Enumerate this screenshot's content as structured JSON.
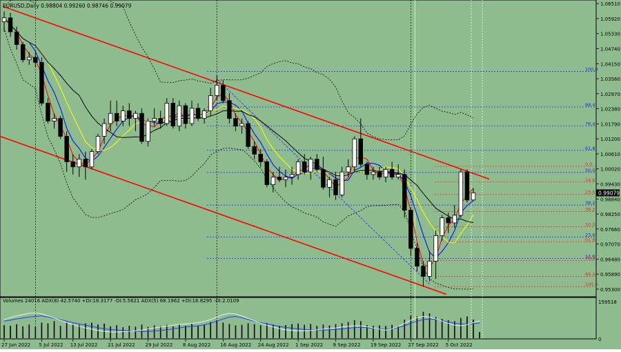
{
  "window": {
    "symbol_info": "EURUSD,Daily  0.98804 0.99260 0.98746 0.99079",
    "indicator_info": "Volumes 24016  ADX(8) 42.5740 +DI:18.3177 -DI:5.5621  ADX(5) 68.1962 +DI:16.8295 -DI:2.0109"
  },
  "colors": {
    "background": "#8fbc8f",
    "bull_candle": "#ffffff",
    "bear_candle": "#000000",
    "channel": "#ff0000",
    "fib_blue": "#2020ff",
    "fib_red": "#ff2020",
    "ma_red": "#ff0000",
    "ma_blue": "#0000ff",
    "ma_yellow": "#ffff00",
    "ma_black": "#000000",
    "bollinger": "#000000",
    "current_price_box": "#000000"
  },
  "chart_data": [
    {
      "type": "candlestick",
      "title": "EURUSD,Daily",
      "ylim": [
        0.95,
        1.0665
      ],
      "price_scale": [
        "1.06510",
        "1.05920",
        "1.05330",
        "1.04740",
        "1.04150",
        "1.03560",
        "1.02970",
        "1.02380",
        "1.01790",
        "1.01200",
        "1.00610",
        "1.00020",
        "0.99430",
        "0.98840",
        "0.98250",
        "0.97660",
        "0.97070",
        "0.96480",
        "0.95890",
        "0.95300"
      ],
      "current_price": "0.99079",
      "x_labels": [
        "27 Jun 2022",
        "5 Jul 2022",
        "13 Jul 2022",
        "21 Jul 2022",
        "29 Jul 2022",
        "8 Aug 2022",
        "16 Aug 2022",
        "24 Aug 2022",
        "1 Sep 2022",
        "9 Sep 2022",
        "19 Sep 2022",
        "27 Sep 2022",
        "5 Oct 2022"
      ],
      "candles": [
        {
          "o": 1.058,
          "h": 1.062,
          "l": 1.054,
          "c": 1.0595
        },
        {
          "o": 1.0595,
          "h": 1.0615,
          "l": 1.052,
          "c": 1.054
        },
        {
          "o": 1.054,
          "h": 1.056,
          "l": 1.047,
          "c": 1.049
        },
        {
          "o": 1.049,
          "h": 1.05,
          "l": 1.042,
          "c": 1.043
        },
        {
          "o": 1.043,
          "h": 1.046,
          "l": 1.041,
          "c": 1.044
        },
        {
          "o": 1.044,
          "h": 1.046,
          "l": 1.04,
          "c": 1.042
        },
        {
          "o": 1.042,
          "h": 1.044,
          "l": 1.025,
          "c": 1.026
        },
        {
          "o": 1.026,
          "h": 1.028,
          "l": 1.018,
          "c": 1.019
        },
        {
          "o": 1.019,
          "h": 1.022,
          "l": 1.016,
          "c": 1.02
        },
        {
          "o": 1.02,
          "h": 1.021,
          "l": 1.012,
          "c": 1.013
        },
        {
          "o": 1.013,
          "h": 1.015,
          "l": 0.999,
          "c": 1.003
        },
        {
          "o": 1.003,
          "h": 1.006,
          "l": 0.998,
          "c": 1.001
        },
        {
          "o": 1.001,
          "h": 1.006,
          "l": 0.997,
          "c": 1.004
        },
        {
          "o": 1.004,
          "h": 1.007,
          "l": 0.996,
          "c": 1.001
        },
        {
          "o": 1.001,
          "h": 1.008,
          "l": 1.0,
          "c": 1.007
        },
        {
          "o": 1.007,
          "h": 1.014,
          "l": 1.006,
          "c": 1.013
        },
        {
          "o": 1.013,
          "h": 1.02,
          "l": 1.01,
          "c": 1.018
        },
        {
          "o": 1.018,
          "h": 1.027,
          "l": 1.015,
          "c": 1.022
        },
        {
          "o": 1.022,
          "h": 1.027,
          "l": 1.017,
          "c": 1.019
        },
        {
          "o": 1.019,
          "h": 1.025,
          "l": 1.017,
          "c": 1.023
        },
        {
          "o": 1.023,
          "h": 1.026,
          "l": 1.017,
          "c": 1.02
        },
        {
          "o": 1.02,
          "h": 1.023,
          "l": 1.015,
          "c": 1.022
        },
        {
          "o": 1.022,
          "h": 1.024,
          "l": 1.01,
          "c": 1.011
        },
        {
          "o": 1.011,
          "h": 1.02,
          "l": 1.009,
          "c": 1.019
        },
        {
          "o": 1.019,
          "h": 1.024,
          "l": 1.017,
          "c": 1.02
        },
        {
          "o": 1.02,
          "h": 1.023,
          "l": 1.016,
          "c": 1.018
        },
        {
          "o": 1.018,
          "h": 1.028,
          "l": 1.017,
          "c": 1.026
        },
        {
          "o": 1.026,
          "h": 1.028,
          "l": 1.016,
          "c": 1.017
        },
        {
          "o": 1.017,
          "h": 1.027,
          "l": 1.015,
          "c": 1.025
        },
        {
          "o": 1.025,
          "h": 1.026,
          "l": 1.016,
          "c": 1.018
        },
        {
          "o": 1.018,
          "h": 1.027,
          "l": 1.017,
          "c": 1.024
        },
        {
          "o": 1.024,
          "h": 1.026,
          "l": 1.019,
          "c": 1.02
        },
        {
          "o": 1.02,
          "h": 1.024,
          "l": 1.018,
          "c": 1.023
        },
        {
          "o": 1.023,
          "h": 1.032,
          "l": 1.021,
          "c": 1.029
        },
        {
          "o": 1.029,
          "h": 1.037,
          "l": 1.027,
          "c": 1.033
        },
        {
          "o": 1.033,
          "h": 1.035,
          "l": 1.026,
          "c": 1.027
        },
        {
          "o": 1.027,
          "h": 1.03,
          "l": 1.018,
          "c": 1.02
        },
        {
          "o": 1.02,
          "h": 1.022,
          "l": 1.015,
          "c": 1.017
        },
        {
          "o": 1.017,
          "h": 1.02,
          "l": 1.014,
          "c": 1.018
        },
        {
          "o": 1.018,
          "h": 1.019,
          "l": 1.008,
          "c": 1.009
        },
        {
          "o": 1.009,
          "h": 1.011,
          "l": 1.004,
          "c": 1.006
        },
        {
          "o": 1.006,
          "h": 1.008,
          "l": 1.001,
          "c": 1.003
        },
        {
          "o": 1.003,
          "h": 1.004,
          "l": 0.993,
          "c": 0.994
        },
        {
          "o": 0.994,
          "h": 0.999,
          "l": 0.991,
          "c": 0.997
        },
        {
          "o": 0.997,
          "h": 1.001,
          "l": 0.995,
          "c": 0.996
        },
        {
          "o": 0.996,
          "h": 1.0,
          "l": 0.993,
          "c": 0.997
        },
        {
          "o": 0.997,
          "h": 1.001,
          "l": 0.994,
          "c": 0.998
        },
        {
          "o": 0.998,
          "h": 1.004,
          "l": 0.996,
          "c": 1.003
        },
        {
          "o": 1.003,
          "h": 1.006,
          "l": 0.998,
          "c": 0.999
        },
        {
          "o": 0.999,
          "h": 1.005,
          "l": 0.996,
          "c": 1.004
        },
        {
          "o": 1.004,
          "h": 1.006,
          "l": 0.999,
          "c": 1.0
        },
        {
          "o": 1.0,
          "h": 1.005,
          "l": 0.992,
          "c": 0.993
        },
        {
          "o": 0.993,
          "h": 0.997,
          "l": 0.989,
          "c": 0.996
        },
        {
          "o": 0.996,
          "h": 0.999,
          "l": 0.988,
          "c": 0.99
        },
        {
          "o": 0.99,
          "h": 1.001,
          "l": 0.989,
          "c": 0.999
        },
        {
          "o": 0.999,
          "h": 1.004,
          "l": 0.997,
          "c": 1.001
        },
        {
          "o": 1.001,
          "h": 1.013,
          "l": 0.999,
          "c": 1.012
        },
        {
          "o": 1.012,
          "h": 1.02,
          "l": 1.001,
          "c": 1.002
        },
        {
          "o": 1.002,
          "h": 1.003,
          "l": 0.996,
          "c": 0.998
        },
        {
          "o": 0.998,
          "h": 1.001,
          "l": 0.996,
          "c": 0.999
        },
        {
          "o": 0.999,
          "h": 1.001,
          "l": 0.996,
          "c": 0.997
        },
        {
          "o": 0.997,
          "h": 1.001,
          "l": 0.995,
          "c": 1.0
        },
        {
          "o": 1.0,
          "h": 1.003,
          "l": 0.996,
          "c": 0.997
        },
        {
          "o": 0.997,
          "h": 1.002,
          "l": 0.996,
          "c": 0.998
        },
        {
          "o": 0.998,
          "h": 1.0,
          "l": 0.981,
          "c": 0.984
        },
        {
          "o": 0.984,
          "h": 0.985,
          "l": 0.966,
          "c": 0.969
        },
        {
          "o": 0.969,
          "h": 0.971,
          "l": 0.96,
          "c": 0.962
        },
        {
          "o": 0.962,
          "h": 0.964,
          "l": 0.954,
          "c": 0.958
        },
        {
          "o": 0.958,
          "h": 0.968,
          "l": 0.956,
          "c": 0.964
        },
        {
          "o": 0.964,
          "h": 0.976,
          "l": 0.957,
          "c": 0.974
        },
        {
          "o": 0.974,
          "h": 0.982,
          "l": 0.972,
          "c": 0.981
        },
        {
          "o": 0.981,
          "h": 0.983,
          "l": 0.975,
          "c": 0.979
        },
        {
          "o": 0.979,
          "h": 0.986,
          "l": 0.977,
          "c": 0.982
        },
        {
          "o": 0.982,
          "h": 0.9999,
          "l": 0.981,
          "c": 0.999
        },
        {
          "o": 0.999,
          "h": 1.0,
          "l": 0.987,
          "c": 0.988
        },
        {
          "o": 0.988,
          "h": 0.9926,
          "l": 0.9875,
          "c": 0.9908
        }
      ],
      "fib_levels_upper": [
        {
          "label": "100.0",
          "price": 1.0385
        },
        {
          "label": "88.4",
          "price": 1.0245
        },
        {
          "label": "76.4",
          "price": 1.017
        },
        {
          "label": "61.8",
          "price": 1.0075
        },
        {
          "label": "50.0",
          "price": 0.9988
        },
        {
          "label": "38.2",
          "price": 0.986
        },
        {
          "label": "23.6",
          "price": 0.9735
        },
        {
          "label": "14.6",
          "price": 0.965
        }
      ],
      "fib_levels_lower": [
        {
          "label": "0.0",
          "price": 1.0012
        },
        {
          "label": "14.6",
          "price": 0.995
        },
        {
          "label": "23.6",
          "price": 0.9902
        },
        {
          "label": "38.2",
          "price": 0.9835
        },
        {
          "label": "50.0",
          "price": 0.9775
        },
        {
          "label": "61.8",
          "price": 0.9715
        },
        {
          "label": "76.4",
          "price": 0.9642
        },
        {
          "label": "88.4",
          "price": 0.958
        },
        {
          "label": "100.0",
          "price": 0.954
        }
      ]
    },
    {
      "type": "bar",
      "title": "Volumes / ADX",
      "ylim": [
        0,
        159518
      ],
      "scale_labels": [
        "159518",
        "0"
      ],
      "volumes": [
        0.42,
        0.4,
        0.45,
        0.38,
        0.44,
        0.36,
        0.5,
        0.48,
        0.55,
        0.4,
        0.52,
        0.46,
        0.43,
        0.48,
        0.5,
        0.44,
        0.47,
        0.38,
        0.42,
        0.35,
        0.4,
        0.37,
        0.44,
        0.36,
        0.41,
        0.39,
        0.43,
        0.38,
        0.45,
        0.4,
        0.46,
        0.39,
        0.44,
        0.52,
        0.58,
        0.5,
        0.46,
        0.41,
        0.43,
        0.48,
        0.45,
        0.42,
        0.49,
        0.44,
        0.4,
        0.42,
        0.45,
        0.47,
        0.43,
        0.46,
        0.4,
        0.44,
        0.41,
        0.45,
        0.48,
        0.52,
        0.58,
        0.55,
        0.42,
        0.4,
        0.41,
        0.39,
        0.43,
        0.4,
        0.6,
        0.72,
        0.7,
        0.85,
        0.8,
        0.68,
        0.62,
        0.58,
        0.55,
        0.65,
        0.7,
        0.6,
        0.2
      ],
      "adx8": [
        0.55,
        0.58,
        0.62,
        0.65,
        0.68,
        0.7,
        0.72,
        0.68,
        0.64,
        0.6,
        0.55,
        0.5,
        0.46,
        0.42,
        0.38,
        0.34,
        0.3,
        0.28,
        0.26,
        0.25,
        0.24,
        0.23,
        0.22,
        0.22,
        0.23,
        0.25,
        0.27,
        0.3,
        0.33,
        0.36,
        0.38,
        0.4,
        0.43,
        0.48,
        0.55,
        0.62,
        0.68,
        0.7,
        0.66,
        0.6,
        0.55,
        0.5,
        0.46,
        0.42,
        0.38,
        0.35,
        0.32,
        0.3,
        0.28,
        0.27,
        0.26,
        0.26,
        0.27,
        0.28,
        0.3,
        0.32,
        0.34,
        0.35,
        0.34,
        0.32,
        0.3,
        0.28,
        0.3,
        0.34,
        0.4,
        0.48,
        0.55,
        0.6,
        0.62,
        0.6,
        0.56,
        0.52,
        0.48,
        0.46,
        0.45,
        0.47,
        0.49
      ],
      "adx5": [
        0.6,
        0.66,
        0.72,
        0.76,
        0.8,
        0.82,
        0.78,
        0.72,
        0.65,
        0.58,
        0.5,
        0.44,
        0.38,
        0.33,
        0.29,
        0.25,
        0.22,
        0.2,
        0.2,
        0.21,
        0.22,
        0.24,
        0.26,
        0.3,
        0.33,
        0.36,
        0.39,
        0.42,
        0.44,
        0.46,
        0.48,
        0.5,
        0.54,
        0.6,
        0.68,
        0.76,
        0.8,
        0.78,
        0.72,
        0.64,
        0.56,
        0.48,
        0.42,
        0.36,
        0.31,
        0.27,
        0.25,
        0.24,
        0.24,
        0.25,
        0.27,
        0.29,
        0.31,
        0.33,
        0.36,
        0.38,
        0.4,
        0.4,
        0.37,
        0.33,
        0.29,
        0.26,
        0.3,
        0.38,
        0.48,
        0.58,
        0.66,
        0.7,
        0.68,
        0.62,
        0.55,
        0.48,
        0.42,
        0.4,
        0.44,
        0.5,
        0.56
      ]
    }
  ]
}
